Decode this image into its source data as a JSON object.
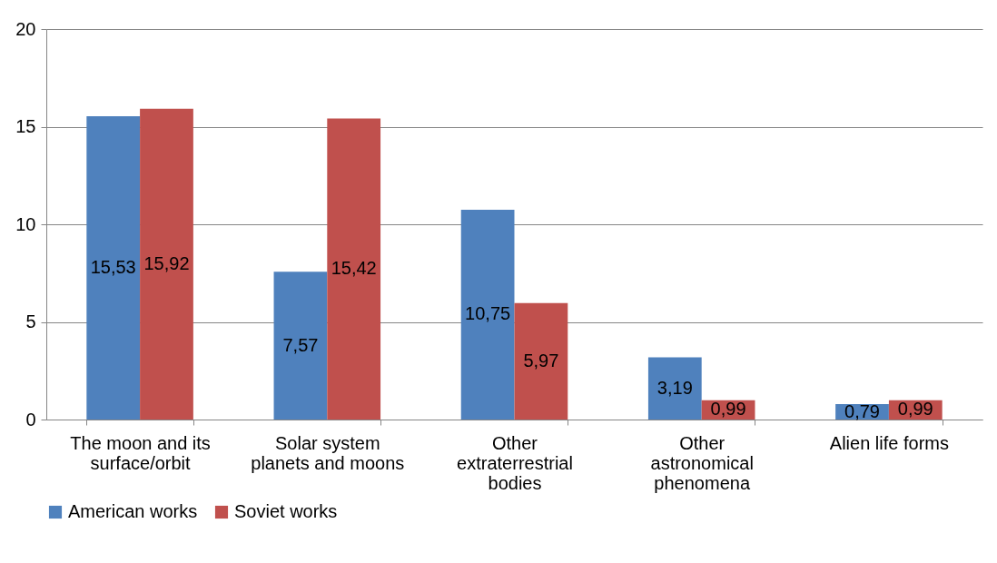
{
  "chart_data": {
    "type": "bar",
    "categories": [
      "The moon and its surface/orbit",
      "Solar system planets and moons",
      "Other extraterrestrial bodies",
      "Other astronomical phenomena",
      "Alien life forms"
    ],
    "series": [
      {
        "name": "American works",
        "color": "#4f81bd",
        "values": [
          15.53,
          7.57,
          10.75,
          3.19,
          0.79
        ],
        "value_labels": [
          "15,53",
          "7,57",
          "10,75",
          "3,19",
          "0,79"
        ]
      },
      {
        "name": "Soviet works",
        "color": "#c0504d",
        "values": [
          15.92,
          15.42,
          5.97,
          0.99,
          0.99
        ],
        "value_labels": [
          "15,92",
          "15,42",
          "5,97",
          "0,99",
          "0,99"
        ]
      }
    ],
    "ylim": [
      0,
      20
    ],
    "yticks": [
      0,
      5,
      10,
      15,
      20
    ],
    "grid": "y",
    "legend": "bottom"
  }
}
